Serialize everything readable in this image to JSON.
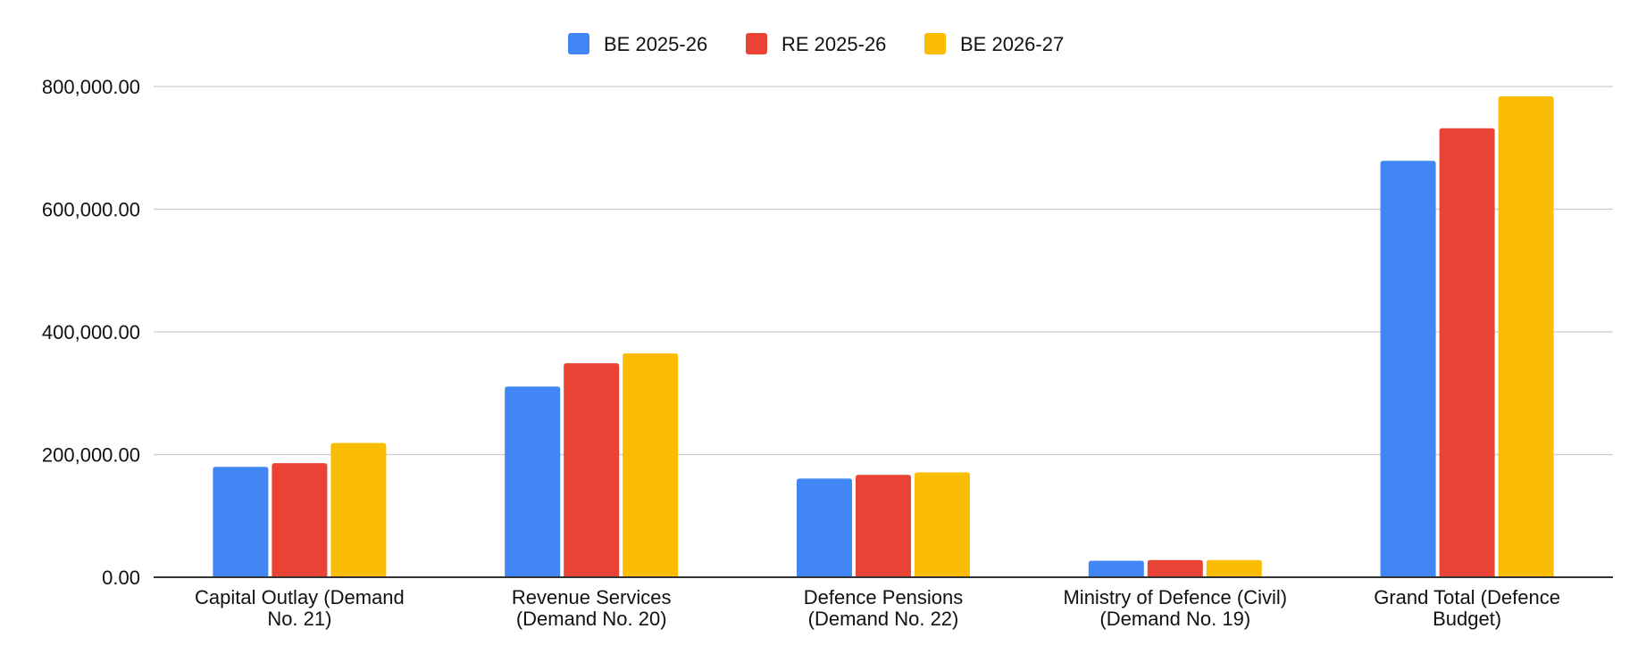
{
  "chart_data": {
    "type": "bar",
    "title": "",
    "xlabel": "",
    "ylabel": "",
    "categories": [
      [
        "Capital Outlay (Demand",
        "No. 21)"
      ],
      [
        "Revenue Services",
        "(Demand No. 20)"
      ],
      [
        "Defence Pensions",
        "(Demand No. 22)"
      ],
      [
        "Ministry of Defence (Civil)",
        "(Demand No. 19)"
      ],
      [
        "Grand Total (Defence",
        "Budget)"
      ]
    ],
    "series": [
      {
        "name": "BE 2025-26",
        "color": "#4285F4",
        "values": [
          180000,
          311000,
          161000,
          27000,
          679000
        ]
      },
      {
        "name": "RE 2025-26",
        "color": "#EA4335",
        "values": [
          186000,
          349000,
          167000,
          28000,
          732000
        ]
      },
      {
        "name": "BE 2026-27",
        "color": "#FBBC04",
        "values": [
          219000,
          365000,
          171000,
          28000,
          784000
        ]
      }
    ],
    "ylim": [
      0,
      800000
    ],
    "yticks": [
      0,
      200000,
      400000,
      600000,
      800000
    ],
    "ytick_labels": [
      "0.00",
      "200,000.00",
      "400,000.00",
      "600,000.00",
      "800,000.00"
    ],
    "grid": true,
    "legend_position": "top-center"
  }
}
